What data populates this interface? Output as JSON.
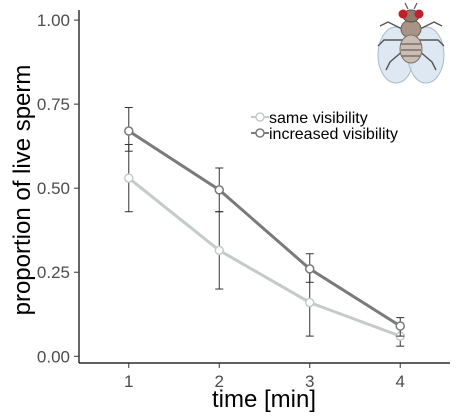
{
  "chart_data": {
    "type": "line",
    "xlabel": "time [min]",
    "ylabel": "proportion of live sperm",
    "x": [
      1,
      2,
      3,
      4
    ],
    "x_ticks": [
      "1",
      "2",
      "3",
      "4"
    ],
    "y_ticks": [
      "0.00",
      "0.25",
      "0.50",
      "0.75",
      "1.00"
    ],
    "xlim": [
      0.45,
      4.55
    ],
    "ylim": [
      -0.02,
      1.03
    ],
    "grid": false,
    "legend_position": "top-right",
    "series": [
      {
        "name": "same visibility",
        "color": "#c4cbc8",
        "values": [
          0.53,
          0.315,
          0.16,
          0.06
        ],
        "error_low": [
          0.43,
          0.2,
          0.06,
          0.03
        ],
        "error_high": [
          0.63,
          0.43,
          0.255,
          0.09
        ]
      },
      {
        "name": "increased visibility",
        "color": "#7a7a7a",
        "values": [
          0.67,
          0.495,
          0.26,
          0.09
        ],
        "error_low": [
          0.61,
          0.43,
          0.22,
          0.06
        ],
        "error_high": [
          0.74,
          0.56,
          0.305,
          0.115
        ]
      }
    ],
    "icon": "fruit-fly-icon"
  }
}
